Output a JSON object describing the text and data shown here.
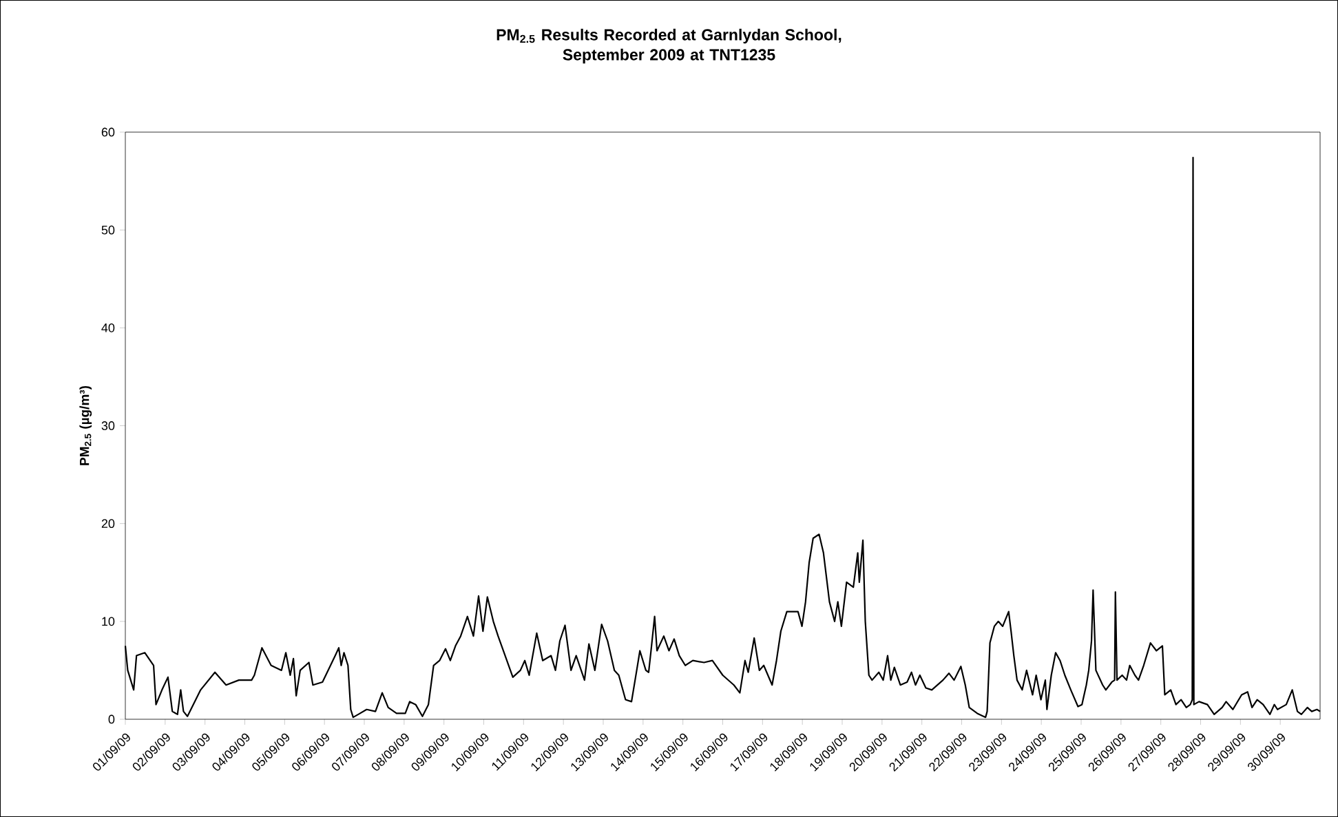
{
  "chart_data": {
    "type": "line",
    "title": "PM$_{2.5}$ Results Recorded at Garnlydan School,\nSeptember 2009 at TNT1235",
    "ylabel": "PM$_{2.5}$ (µg/m³)",
    "xlim": [
      "2009-09-01",
      "2009-10-01"
    ],
    "ylim": [
      0,
      60
    ],
    "yticks": [
      0,
      10,
      20,
      30,
      40,
      50,
      60
    ],
    "xticks": [
      {
        "value": "2009-09-01",
        "label": "01/09/09"
      },
      {
        "value": "2009-09-02",
        "label": "02/09/09"
      },
      {
        "value": "2009-09-03",
        "label": "03/09/09"
      },
      {
        "value": "2009-09-04",
        "label": "04/09/09"
      },
      {
        "value": "2009-09-05",
        "label": "05/09/09"
      },
      {
        "value": "2009-09-06",
        "label": "06/09/09"
      },
      {
        "value": "2009-09-07",
        "label": "07/09/09"
      },
      {
        "value": "2009-09-08",
        "label": "08/09/09"
      },
      {
        "value": "2009-09-09",
        "label": "09/09/09"
      },
      {
        "value": "2009-09-10",
        "label": "10/09/09"
      },
      {
        "value": "2009-09-11",
        "label": "11/09/09"
      },
      {
        "value": "2009-09-12",
        "label": "12/09/09"
      },
      {
        "value": "2009-09-13",
        "label": "13/09/09"
      },
      {
        "value": "2009-09-14",
        "label": "14/09/09"
      },
      {
        "value": "2009-09-15",
        "label": "15/09/09"
      },
      {
        "value": "2009-09-16",
        "label": "16/09/09"
      },
      {
        "value": "2009-09-17",
        "label": "17/09/09"
      },
      {
        "value": "2009-09-18",
        "label": "18/09/09"
      },
      {
        "value": "2009-09-19",
        "label": "19/09/09"
      },
      {
        "value": "2009-09-20",
        "label": "20/09/09"
      },
      {
        "value": "2009-09-21",
        "label": "21/09/09"
      },
      {
        "value": "2009-09-22",
        "label": "22/09/09"
      },
      {
        "value": "2009-09-23",
        "label": "23/09/09"
      },
      {
        "value": "2009-09-24",
        "label": "24/09/09"
      },
      {
        "value": "2009-09-25",
        "label": "25/09/09"
      },
      {
        "value": "2009-09-26",
        "label": "26/09/09"
      },
      {
        "value": "2009-09-27",
        "label": "27/09/09"
      },
      {
        "value": "2009-09-28",
        "label": "28/09/09"
      },
      {
        "value": "2009-09-29",
        "label": "29/09/09"
      },
      {
        "value": "2009-09-30",
        "label": "30/09/09"
      }
    ],
    "series": [
      {
        "color": "#000000",
        "x": [
          "2009-09-01T00:00",
          "2009-09-01T01:26",
          "2009-09-01T05:02",
          "2009-09-01T06:43",
          "2009-09-01T11:46",
          "2009-09-01T17:02",
          "2009-09-01T18:29",
          "2009-09-01T22:05",
          "2009-09-02T01:41",
          "2009-09-02T04:19",
          "2009-09-02T07:26",
          "2009-09-02T09:22",
          "2009-09-02T11:02",
          "2009-09-02T13:26",
          "2009-09-02T21:22",
          "2009-09-03T06:00",
          "2009-09-03T12:43",
          "2009-09-03T20:24",
          "2009-09-04T04:05",
          "2009-09-04T05:46",
          "2009-09-04T10:19",
          "2009-09-04T15:50",
          "2009-09-04T22:05",
          "2009-09-05T00:43",
          "2009-09-05T03:22",
          "2009-09-05T05:17",
          "2009-09-05T06:58",
          "2009-09-05T09:22",
          "2009-09-05T14:38",
          "2009-09-05T17:02",
          "2009-09-05T22:48",
          "2009-09-06T06:29",
          "2009-09-06T08:38",
          "2009-09-06T10:05",
          "2009-09-06T11:46",
          "2009-09-06T14:10",
          "2009-09-06T15:50",
          "2009-09-06T17:17",
          "2009-09-06T20:24",
          "2009-09-07T01:26",
          "2009-09-07T06:43",
          "2009-09-07T10:48",
          "2009-09-07T14:24",
          "2009-09-07T19:26",
          "2009-09-08T00:43",
          "2009-09-08T03:22",
          "2009-09-08T06:58",
          "2009-09-08T11:02",
          "2009-09-08T14:38",
          "2009-09-08T17:46",
          "2009-09-08T21:22",
          "2009-09-09T00:58",
          "2009-09-09T03:50",
          "2009-09-09T06:58",
          "2009-09-09T10:05",
          "2009-09-09T14:10",
          "2009-09-09T17:46",
          "2009-09-09T20:53",
          "2009-09-09T23:31",
          "2009-09-10T02:10",
          "2009-09-10T05:46",
          "2009-09-10T08:38",
          "2009-09-10T13:55",
          "2009-09-10T17:31",
          "2009-09-10T22:05",
          "2009-09-11T00:43",
          "2009-09-11T03:22",
          "2009-09-11T07:55",
          "2009-09-11T11:31",
          "2009-09-11T16:34",
          "2009-09-11T19:12",
          "2009-09-11T21:50",
          "2009-09-12T00:58",
          "2009-09-12T04:34",
          "2009-09-12T07:41",
          "2009-09-12T12:43",
          "2009-09-12T15:22",
          "2009-09-12T18:58",
          "2009-09-12T23:02",
          "2009-09-13T02:38",
          "2009-09-13T06:43",
          "2009-09-13T09:22",
          "2009-09-13T13:26",
          "2009-09-13T17:02",
          "2009-09-13T20:10",
          "2009-09-13T22:05",
          "2009-09-14T01:41",
          "2009-09-14T03:22",
          "2009-09-14T04:48",
          "2009-09-14T06:58",
          "2009-09-14T08:24",
          "2009-09-14T12:29",
          "2009-09-14T15:36",
          "2009-09-14T18:43",
          "2009-09-14T21:50",
          "2009-09-15T01:26",
          "2009-09-15T06:00",
          "2009-09-15T12:43",
          "2009-09-15T17:46",
          "2009-09-16T00:00",
          "2009-09-16T06:43",
          "2009-09-16T10:19",
          "2009-09-16T13:26",
          "2009-09-16T15:22",
          "2009-09-16T18:58",
          "2009-09-16T22:05",
          "2009-09-17T00:43",
          "2009-09-17T05:46",
          "2009-09-17T08:24",
          "2009-09-17T11:02",
          "2009-09-17T14:38",
          "2009-09-17T21:22",
          "2009-09-17T23:46",
          "2009-09-18T01:55",
          "2009-09-18T04:05",
          "2009-09-18T06:29",
          "2009-09-18T10:05",
          "2009-09-18T12:43",
          "2009-09-18T16:19",
          "2009-09-18T19:26",
          "2009-09-18T21:22",
          "2009-09-18T23:31",
          "2009-09-19T02:38",
          "2009-09-19T06:43",
          "2009-09-19T09:22",
          "2009-09-19T10:19",
          "2009-09-19T12:29",
          "2009-09-19T13:55",
          "2009-09-19T16:05",
          "2009-09-19T18:00",
          "2009-09-19T22:05",
          "2009-09-20T00:43",
          "2009-09-20T03:22",
          "2009-09-20T05:17",
          "2009-09-20T07:26",
          "2009-09-20T11:02",
          "2009-09-20T15:07",
          "2009-09-20T17:46",
          "2009-09-20T20:10",
          "2009-09-20T22:48",
          "2009-09-21T02:24",
          "2009-09-21T06:00",
          "2009-09-21T12:43",
          "2009-09-21T16:19",
          "2009-09-21T19:26",
          "2009-09-21T23:31",
          "2009-09-22T02:10",
          "2009-09-22T04:34",
          "2009-09-22T09:22",
          "2009-09-22T14:24",
          "2009-09-22T15:22",
          "2009-09-22T17:02",
          "2009-09-22T19:41",
          "2009-09-22T22:05",
          "2009-09-23T00:43",
          "2009-09-23T04:19",
          "2009-09-23T05:46",
          "2009-09-23T07:26",
          "2009-09-23T09:22",
          "2009-09-23T12:29",
          "2009-09-23T15:07",
          "2009-09-23T18:43",
          "2009-09-23T20:53",
          "2009-09-23T23:46",
          "2009-09-24T02:24",
          "2009-09-24T03:22",
          "2009-09-24T06:00",
          "2009-09-24T08:38",
          "2009-09-24T11:17",
          "2009-09-24T14:10",
          "2009-09-24T17:46",
          "2009-09-24T22:05",
          "2009-09-25T00:29",
          "2009-09-25T03:07",
          "2009-09-25T04:34",
          "2009-09-25T06:14",
          "2009-09-25T07:12",
          "2009-09-25T08:53",
          "2009-09-25T12:58",
          "2009-09-25T14:53",
          "2009-09-25T18:29",
          "2009-09-25T20:10",
          "2009-09-25T20:38",
          "2009-09-25T21:36",
          "2009-09-26T00:43",
          "2009-09-26T03:22",
          "2009-09-26T05:17",
          "2009-09-26T08:24",
          "2009-09-26T10:34",
          "2009-09-26T13:41",
          "2009-09-26T17:46",
          "2009-09-26T21:22",
          "2009-09-27T00:58",
          "2009-09-27T02:24",
          "2009-09-27T06:00",
          "2009-09-27T09:07",
          "2009-09-27T12:14",
          "2009-09-27T15:22",
          "2009-09-27T17:46",
          "2009-09-27T18:58",
          "2009-09-27T19:26",
          "2009-09-27T19:55",
          "2009-09-27T23:02",
          "2009-09-28T04:05",
          "2009-09-28T08:10",
          "2009-09-28T12:58",
          "2009-09-28T15:22",
          "2009-09-28T19:26",
          "2009-09-29T00:43",
          "2009-09-29T04:19",
          "2009-09-29T06:58",
          "2009-09-29T10:05",
          "2009-09-29T13:41",
          "2009-09-29T17:46",
          "2009-09-29T20:24",
          "2009-09-29T22:19",
          "2009-09-30T03:36",
          "2009-09-30T07:12",
          "2009-09-30T10:19",
          "2009-09-30T12:43",
          "2009-09-30T16:19",
          "2009-09-30T18:58",
          "2009-09-30T22:05",
          "2009-10-01T00:00"
        ],
        "values": [
          7.5,
          5,
          3,
          6.5,
          6.8,
          5.5,
          1.5,
          3,
          4.3,
          0.8,
          0.5,
          3,
          0.8,
          0.3,
          3,
          4.8,
          3.5,
          4,
          4,
          4.5,
          7.3,
          5.5,
          5,
          6.8,
          4.5,
          6.2,
          2.4,
          5,
          5.8,
          3.5,
          3.8,
          6.5,
          7.3,
          5.5,
          6.8,
          5.5,
          1,
          0.2,
          0.5,
          1,
          0.8,
          2.7,
          1.2,
          0.6,
          0.6,
          1.8,
          1.5,
          0.3,
          1.5,
          5.5,
          6,
          7.2,
          6,
          7.5,
          8.5,
          10.5,
          8.5,
          12.6,
          9,
          12.5,
          10,
          8.5,
          6,
          4.3,
          5,
          6,
          4.5,
          8.8,
          6,
          6.5,
          5,
          8,
          9.6,
          5,
          6.5,
          4,
          7.7,
          5,
          9.7,
          8,
          5,
          4.5,
          2,
          1.8,
          5,
          7,
          5,
          4.8,
          7,
          10.5,
          7,
          8.5,
          7,
          8.2,
          6.5,
          5.5,
          6,
          5.8,
          6,
          4.5,
          3.5,
          2.7,
          6,
          4.8,
          8.3,
          5,
          5.5,
          3.5,
          6,
          9,
          11,
          11,
          9.5,
          12,
          16,
          18.5,
          18.9,
          17,
          12,
          10,
          12,
          9.5,
          14,
          13.5,
          17,
          14,
          18.3,
          10,
          4.5,
          4,
          4.8,
          4,
          6.5,
          4,
          5.3,
          3.5,
          3.8,
          4.8,
          3.5,
          4.5,
          3.2,
          3,
          4,
          4.7,
          4,
          5.4,
          3.5,
          1.2,
          0.6,
          0.2,
          0.8,
          7.8,
          9.5,
          10,
          9.5,
          11,
          9,
          6.5,
          4,
          3,
          5,
          2.5,
          4.5,
          2,
          4,
          1,
          4.5,
          6.8,
          6,
          4.5,
          3,
          1.3,
          1.5,
          3.5,
          5,
          8,
          13.2,
          5,
          3.5,
          3,
          3.8,
          4,
          13,
          4,
          4.5,
          4,
          5.5,
          4.5,
          4,
          5.5,
          7.8,
          7,
          7.5,
          2.5,
          3,
          1.5,
          2,
          1.2,
          1.5,
          2,
          57.4,
          1.5,
          1.8,
          1.5,
          0.5,
          1.2,
          1.8,
          1,
          2.5,
          2.8,
          1.2,
          2,
          1.5,
          0.5,
          1.5,
          1,
          1.5,
          3,
          0.8,
          0.5,
          1.2,
          0.8,
          1,
          0.8
        ]
      }
    ]
  }
}
